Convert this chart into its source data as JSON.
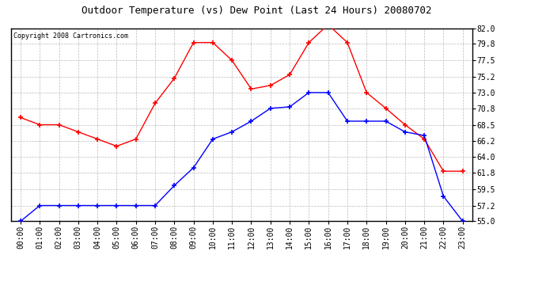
{
  "title": "Outdoor Temperature (vs) Dew Point (Last 24 Hours) 20080702",
  "copyright": "Copyright 2008 Cartronics.com",
  "hours": [
    "00:00",
    "01:00",
    "02:00",
    "03:00",
    "04:00",
    "05:00",
    "06:00",
    "07:00",
    "08:00",
    "09:00",
    "10:00",
    "11:00",
    "12:00",
    "13:00",
    "14:00",
    "15:00",
    "16:00",
    "17:00",
    "18:00",
    "19:00",
    "20:00",
    "21:00",
    "22:00",
    "23:00"
  ],
  "temp": [
    69.5,
    68.5,
    68.5,
    67.5,
    66.5,
    65.5,
    66.5,
    71.5,
    75.0,
    80.0,
    80.0,
    77.5,
    73.5,
    74.0,
    75.5,
    80.0,
    82.5,
    80.0,
    73.0,
    70.8,
    68.5,
    66.5,
    62.0,
    62.0
  ],
  "dewpoint": [
    55.0,
    57.2,
    57.2,
    57.2,
    57.2,
    57.2,
    57.2,
    57.2,
    60.0,
    62.5,
    66.5,
    67.5,
    69.0,
    70.8,
    71.0,
    73.0,
    73.0,
    69.0,
    69.0,
    69.0,
    67.5,
    67.0,
    58.5,
    55.0
  ],
  "ylim": [
    55.0,
    82.0
  ],
  "yticks": [
    55.0,
    57.2,
    59.5,
    61.8,
    64.0,
    66.2,
    68.5,
    70.8,
    73.0,
    75.2,
    77.5,
    79.8,
    82.0
  ],
  "temp_color": "#ff0000",
  "dewpoint_color": "#0000ff",
  "bg_color": "#ffffff",
  "grid_color": "#bbbbbb",
  "title_fontsize": 9,
  "copyright_fontsize": 6,
  "tick_fontsize": 7,
  "ytick_fontsize": 7
}
